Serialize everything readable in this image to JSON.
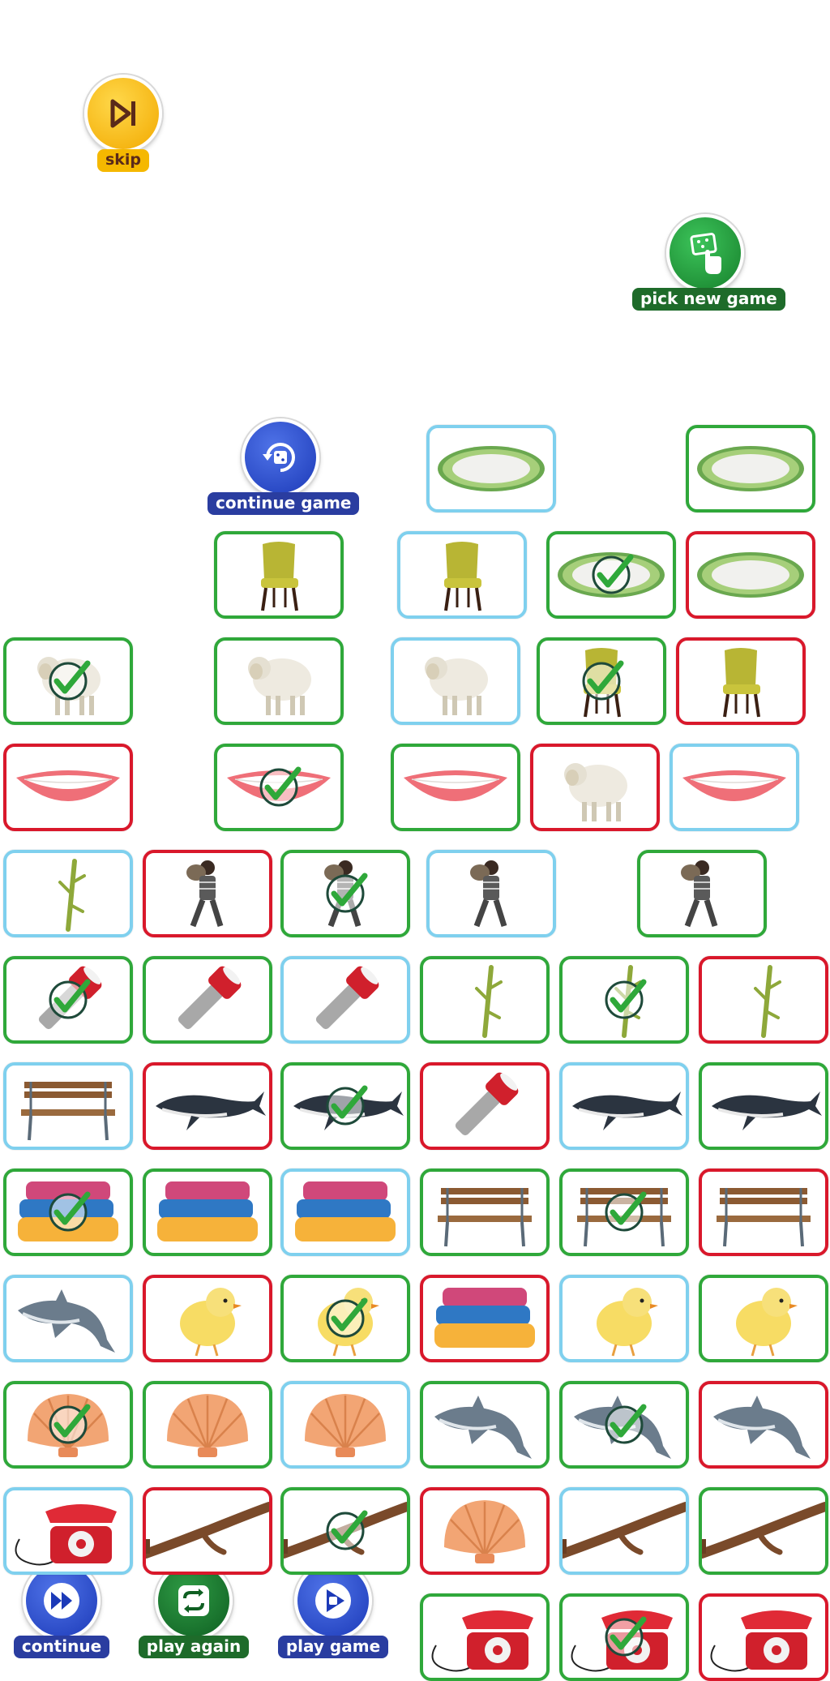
{
  "buttons": {
    "skip": {
      "label": "skip",
      "color": "#f5b800"
    },
    "pick_new_game": {
      "label": "pick new game",
      "color": "#1e8a2e"
    },
    "continue_game": {
      "label": "continue game",
      "color": "#2a3da0"
    },
    "continue": {
      "label": "continue",
      "color": "#2a3da0"
    },
    "play_again": {
      "label": "play again",
      "color": "#1e6b2a"
    },
    "play_game": {
      "label": "play game",
      "color": "#2a3da0"
    }
  },
  "colors": {
    "correct_border": "#2fa83a",
    "wrong_border": "#d9182b",
    "neutral_border": "#7fd0ee",
    "check_mark": "#2fa83a"
  },
  "cards": [
    {
      "item": "plate-icon",
      "border": "blue",
      "check": false,
      "pos": "r0c3"
    },
    {
      "item": "plate-icon",
      "border": "green",
      "check": false,
      "pos": "r0c5"
    },
    {
      "item": "chair-icon",
      "border": "green",
      "check": false,
      "pos": "r1c1"
    },
    {
      "item": "chair-icon",
      "border": "blue",
      "check": false,
      "pos": "r1c2"
    },
    {
      "item": "plate-icon",
      "border": "green",
      "check": true,
      "pos": "r1c3"
    },
    {
      "item": "plate-icon",
      "border": "red",
      "check": false,
      "pos": "r1c4"
    },
    {
      "item": "sheep-icon",
      "border": "green",
      "check": true,
      "pos": "r2c0"
    },
    {
      "item": "sheep-icon",
      "border": "green",
      "check": false,
      "pos": "r2c1"
    },
    {
      "item": "sheep-icon",
      "border": "blue",
      "check": false,
      "pos": "r2c2"
    },
    {
      "item": "chair-icon",
      "border": "green",
      "check": true,
      "pos": "r2c3"
    },
    {
      "item": "chair-icon",
      "border": "red",
      "check": false,
      "pos": "r2c4"
    },
    {
      "item": "lips-icon",
      "border": "red",
      "check": false,
      "pos": "r3c0"
    },
    {
      "item": "lips-icon",
      "border": "green",
      "check": true,
      "pos": "r3c1"
    },
    {
      "item": "lips-icon",
      "border": "green",
      "check": false,
      "pos": "r3c2"
    },
    {
      "item": "sheep-icon",
      "border": "red",
      "check": false,
      "pos": "r3c3"
    },
    {
      "item": "lips-icon",
      "border": "blue",
      "check": false,
      "pos": "r3c4"
    },
    {
      "item": "twig-icon",
      "border": "blue",
      "check": false,
      "pos": "r4c0"
    },
    {
      "item": "thief-icon",
      "border": "red",
      "check": false,
      "pos": "r4c1"
    },
    {
      "item": "thief-icon",
      "border": "green",
      "check": true,
      "pos": "r4c2"
    },
    {
      "item": "thief-icon",
      "border": "blue",
      "check": false,
      "pos": "r4c3"
    },
    {
      "item": "thief-icon",
      "border": "green",
      "check": false,
      "pos": "r4c4"
    },
    {
      "item": "flashlight-icon",
      "border": "green",
      "check": true,
      "pos": "r5c0"
    },
    {
      "item": "flashlight-icon",
      "border": "green",
      "check": false,
      "pos": "r5c1"
    },
    {
      "item": "flashlight-icon",
      "border": "blue",
      "check": false,
      "pos": "r5c2"
    },
    {
      "item": "twig-icon",
      "border": "green",
      "check": false,
      "pos": "r5c3"
    },
    {
      "item": "twig-icon",
      "border": "green",
      "check": true,
      "pos": "r5c4"
    },
    {
      "item": "twig-icon",
      "border": "red",
      "check": false,
      "pos": "r5c5"
    },
    {
      "item": "bench-icon",
      "border": "blue",
      "check": false,
      "pos": "r6c0"
    },
    {
      "item": "whale-icon",
      "border": "red",
      "check": false,
      "pos": "r6c1"
    },
    {
      "item": "whale-icon",
      "border": "green",
      "check": true,
      "pos": "r6c2"
    },
    {
      "item": "flashlight-icon",
      "border": "red",
      "check": false,
      "pos": "r6c3"
    },
    {
      "item": "whale-icon",
      "border": "blue",
      "check": false,
      "pos": "r6c4"
    },
    {
      "item": "whale-icon",
      "border": "green",
      "check": false,
      "pos": "r6c5"
    },
    {
      "item": "blankets-icon",
      "border": "green",
      "check": true,
      "pos": "r7c0"
    },
    {
      "item": "blankets-icon",
      "border": "green",
      "check": false,
      "pos": "r7c1"
    },
    {
      "item": "blankets-icon",
      "border": "blue",
      "check": false,
      "pos": "r7c2"
    },
    {
      "item": "bench-icon",
      "border": "green",
      "check": false,
      "pos": "r7c3"
    },
    {
      "item": "bench-icon",
      "border": "green",
      "check": true,
      "pos": "r7c4"
    },
    {
      "item": "bench-icon",
      "border": "red",
      "check": false,
      "pos": "r7c5"
    },
    {
      "item": "dolphin-icon",
      "border": "blue",
      "check": false,
      "pos": "r8c0"
    },
    {
      "item": "chick-icon",
      "border": "red",
      "check": false,
      "pos": "r8c1"
    },
    {
      "item": "chick-icon",
      "border": "green",
      "check": true,
      "pos": "r8c2"
    },
    {
      "item": "blankets-icon",
      "border": "red",
      "check": false,
      "pos": "r8c3"
    },
    {
      "item": "chick-icon",
      "border": "blue",
      "check": false,
      "pos": "r8c4"
    },
    {
      "item": "chick-icon",
      "border": "green",
      "check": false,
      "pos": "r8c5"
    },
    {
      "item": "shell-icon",
      "border": "green",
      "check": true,
      "pos": "r9c0"
    },
    {
      "item": "shell-icon",
      "border": "green",
      "check": false,
      "pos": "r9c1"
    },
    {
      "item": "shell-icon",
      "border": "blue",
      "check": false,
      "pos": "r9c2"
    },
    {
      "item": "dolphin-icon",
      "border": "green",
      "check": false,
      "pos": "r9c3"
    },
    {
      "item": "dolphin-icon",
      "border": "green",
      "check": true,
      "pos": "r9c4"
    },
    {
      "item": "dolphin-icon",
      "border": "red",
      "check": false,
      "pos": "r9c5"
    },
    {
      "item": "telephone-icon",
      "border": "blue",
      "check": false,
      "pos": "r10c0"
    },
    {
      "item": "branch-icon",
      "border": "red",
      "check": false,
      "pos": "r10c1"
    },
    {
      "item": "branch-icon",
      "border": "green",
      "check": true,
      "pos": "r10c2"
    },
    {
      "item": "shell-icon",
      "border": "red",
      "check": false,
      "pos": "r10c3"
    },
    {
      "item": "branch-icon",
      "border": "blue",
      "check": false,
      "pos": "r10c4"
    },
    {
      "item": "branch-icon",
      "border": "green",
      "check": false,
      "pos": "r10c5"
    },
    {
      "item": "telephone-icon",
      "border": "green",
      "check": false,
      "pos": "r11c3"
    },
    {
      "item": "telephone-icon",
      "border": "green",
      "check": true,
      "pos": "r11c4"
    },
    {
      "item": "telephone-icon",
      "border": "red",
      "check": false,
      "pos": "r11c5"
    }
  ]
}
